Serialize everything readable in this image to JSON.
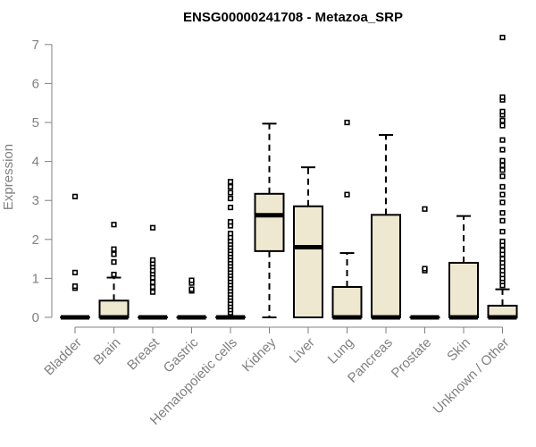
{
  "chart_data": {
    "type": "boxplot",
    "title": "ENSG00000241708 - Metazoa_SRP",
    "xlabel": "",
    "ylabel": "Expression",
    "ylim": [
      0,
      7.2
    ],
    "yticks": [
      "0",
      "1",
      "2",
      "3",
      "4",
      "5",
      "6",
      "7"
    ],
    "ytick_values": [
      0,
      1,
      2,
      3,
      4,
      5,
      6,
      7
    ],
    "grid": false,
    "box_fill": "#efe8d0",
    "categories": [
      "Bladder",
      "Brain",
      "Breast",
      "Gastric",
      "Hematopoietic cells",
      "Kidney",
      "Liver",
      "Lung",
      "Pancreas",
      "Prostate",
      "Skin",
      "Unknown / Other"
    ],
    "boxes": [
      {
        "q1": 0,
        "median": 0,
        "q3": 0,
        "whisker_low": 0,
        "whisker_high": 0,
        "outliers": [
          0.75,
          0.8,
          1.15,
          3.1
        ]
      },
      {
        "q1": 0,
        "median": 0,
        "q3": 0.43,
        "whisker_low": 0,
        "whisker_high": 1.02,
        "outliers": [
          1.1,
          1.42,
          1.62,
          1.75,
          2.38
        ]
      },
      {
        "q1": 0,
        "median": 0,
        "q3": 0,
        "whisker_low": 0,
        "whisker_high": 0,
        "outliers": [
          0.65,
          0.78,
          0.9,
          1.02,
          1.12,
          1.2,
          1.3,
          1.38,
          1.47,
          2.3
        ]
      },
      {
        "q1": 0,
        "median": 0,
        "q3": 0,
        "whisker_low": 0,
        "whisker_high": 0,
        "outliers": [
          0.68,
          0.72,
          0.88,
          0.95
        ]
      },
      {
        "q1": 0,
        "median": 0,
        "q3": 0,
        "whisker_low": 0,
        "whisker_high": 0,
        "outliers": [
          0.12,
          0.2,
          0.28,
          0.36,
          0.44,
          0.52,
          0.6,
          0.68,
          0.76,
          0.84,
          0.92,
          1.0,
          1.08,
          1.16,
          1.24,
          1.32,
          1.4,
          1.48,
          1.56,
          1.64,
          1.72,
          1.8,
          1.88,
          1.96,
          2.05,
          2.15,
          2.35,
          2.45,
          2.82,
          3.05,
          3.2,
          3.35,
          3.48
        ]
      },
      {
        "q1": 1.7,
        "median": 2.62,
        "q3": 3.17,
        "whisker_low": 0,
        "whisker_high": 4.97,
        "outliers": []
      },
      {
        "q1": 0,
        "median": 1.8,
        "q3": 2.85,
        "whisker_low": 0,
        "whisker_high": 3.85,
        "outliers": []
      },
      {
        "q1": 0,
        "median": 0,
        "q3": 0.78,
        "whisker_low": 0,
        "whisker_high": 1.65,
        "outliers": [
          3.15,
          5.0
        ]
      },
      {
        "q1": 0,
        "median": 0,
        "q3": 2.63,
        "whisker_low": 0,
        "whisker_high": 4.68,
        "outliers": []
      },
      {
        "q1": 0,
        "median": 0,
        "q3": 0,
        "whisker_low": 0,
        "whisker_high": 0,
        "outliers": [
          1.2,
          1.25,
          2.78
        ]
      },
      {
        "q1": 0,
        "median": 0,
        "q3": 1.4,
        "whisker_low": 0,
        "whisker_high": 2.6,
        "outliers": []
      },
      {
        "q1": 0,
        "median": 0,
        "q3": 0.3,
        "whisker_low": 0,
        "whisker_high": 0.72,
        "outliers": [
          0.82,
          0.92,
          1.0,
          1.1,
          1.2,
          1.3,
          1.4,
          1.5,
          1.62,
          1.72,
          1.85,
          1.95,
          2.2,
          2.48,
          2.68,
          2.95,
          3.15,
          3.35,
          3.62,
          3.78,
          3.9,
          4.02,
          4.3,
          4.55,
          4.92,
          5.05,
          5.2,
          5.28,
          5.58,
          5.65,
          7.18
        ]
      }
    ]
  }
}
